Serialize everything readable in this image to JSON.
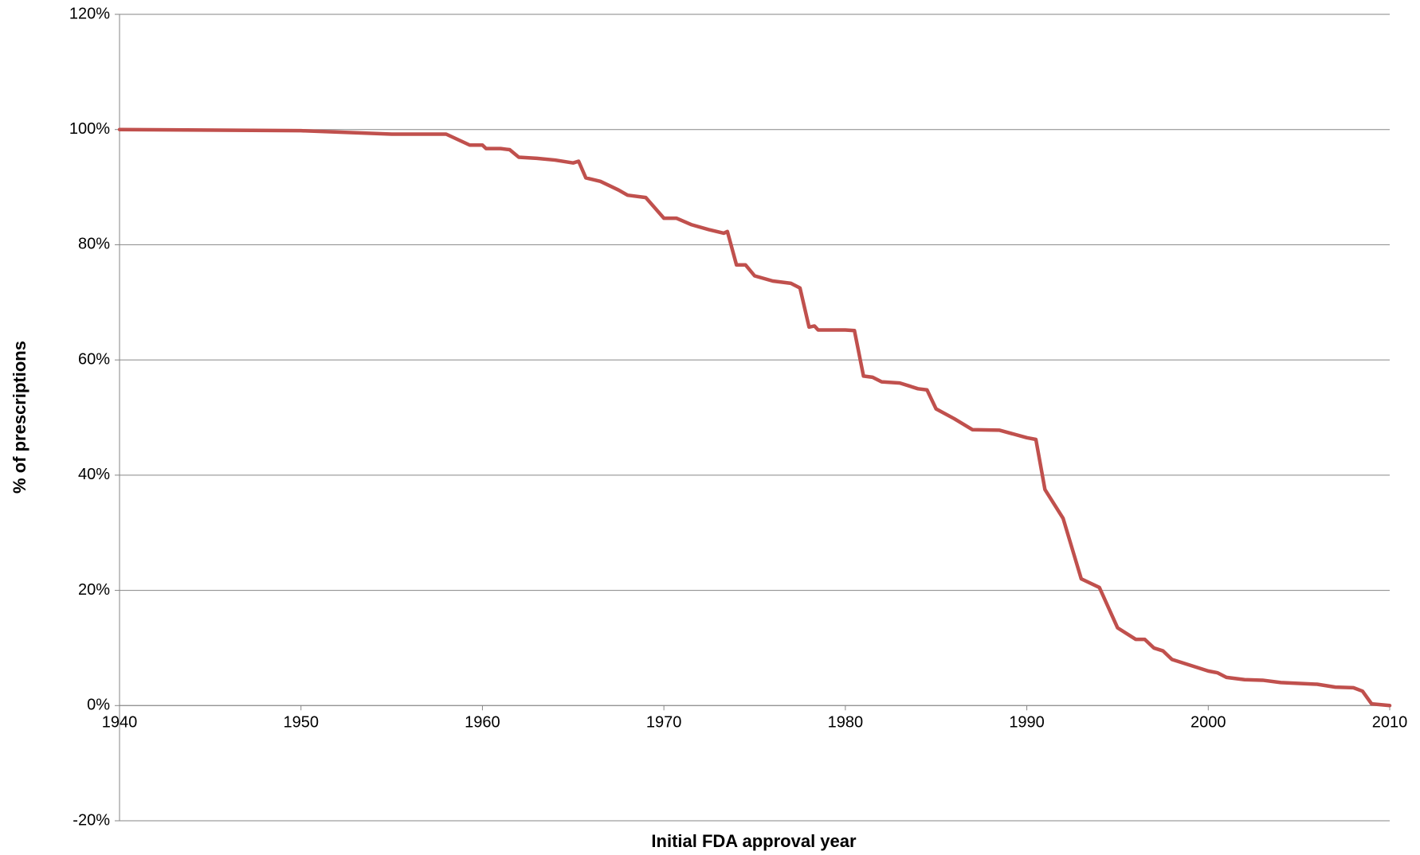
{
  "chart_data": {
    "type": "line",
    "x_label": "Initial FDA approval year",
    "y_label": "% of prescriptions",
    "xlim": [
      1940,
      2010
    ],
    "xticks": [
      1940,
      1950,
      1960,
      1970,
      1980,
      1990,
      2000,
      2010
    ],
    "ylim": [
      -20,
      120
    ],
    "yticks": [
      {
        "value": -20,
        "label": "-20%"
      },
      {
        "value": 0,
        "label": "0%"
      },
      {
        "value": 20,
        "label": "20%"
      },
      {
        "value": 40,
        "label": "40%"
      },
      {
        "value": 60,
        "label": "60%"
      },
      {
        "value": 80,
        "label": "80%"
      },
      {
        "value": 100,
        "label": "100%"
      },
      {
        "value": 120,
        "label": "120%"
      }
    ],
    "grid": true,
    "x": [
      1940,
      1950,
      1955,
      1957,
      1958,
      1959.3,
      1960,
      1960.2,
      1961,
      1961.5,
      1962,
      1963,
      1964,
      1965,
      1965.3,
      1965.7,
      1966.5,
      1967.5,
      1968,
      1969,
      1970,
      1970.7,
      1971.5,
      1972.5,
      1973.3,
      1973.5,
      1974,
      1974.5,
      1975,
      1976,
      1977,
      1977.5,
      1978,
      1978.3,
      1978.5,
      1980,
      1980.5,
      1981,
      1981.5,
      1982,
      1983,
      1984,
      1984.5,
      1985,
      1986,
      1987,
      1988.5,
      1990,
      1990.5,
      1991,
      1992,
      1993,
      1994,
      1995,
      1996,
      1996.5,
      1997,
      1997.5,
      1998,
      1999,
      2000,
      2000.5,
      2001,
      2002,
      2003,
      2004,
      2006,
      2007,
      2008,
      2008.5,
      2009,
      2010
    ],
    "series": [
      {
        "name": "% of prescriptions",
        "color": "#c0504d",
        "values": [
          100,
          99.8,
          99.2,
          99.2,
          99.2,
          97.3,
          97.3,
          96.7,
          96.7,
          96.5,
          95.2,
          95,
          94.7,
          94.2,
          94.5,
          91.6,
          91,
          89.5,
          88.6,
          88.2,
          84.6,
          84.6,
          83.5,
          82.6,
          82,
          82.3,
          76.5,
          76.5,
          74.6,
          73.7,
          73.3,
          72.5,
          65.7,
          65.9,
          65.2,
          65.2,
          65.1,
          57.2,
          57,
          56.2,
          56,
          55,
          54.8,
          51.5,
          49.8,
          47.9,
          47.8,
          46.5,
          46.2,
          37.5,
          32.5,
          22,
          20.5,
          13.5,
          11.5,
          11.5,
          10,
          9.5,
          8,
          7,
          6,
          5.7,
          4.9,
          4.5,
          4.4,
          4,
          3.7,
          3.2,
          3.1,
          2.5,
          0.3,
          0
        ]
      }
    ]
  }
}
